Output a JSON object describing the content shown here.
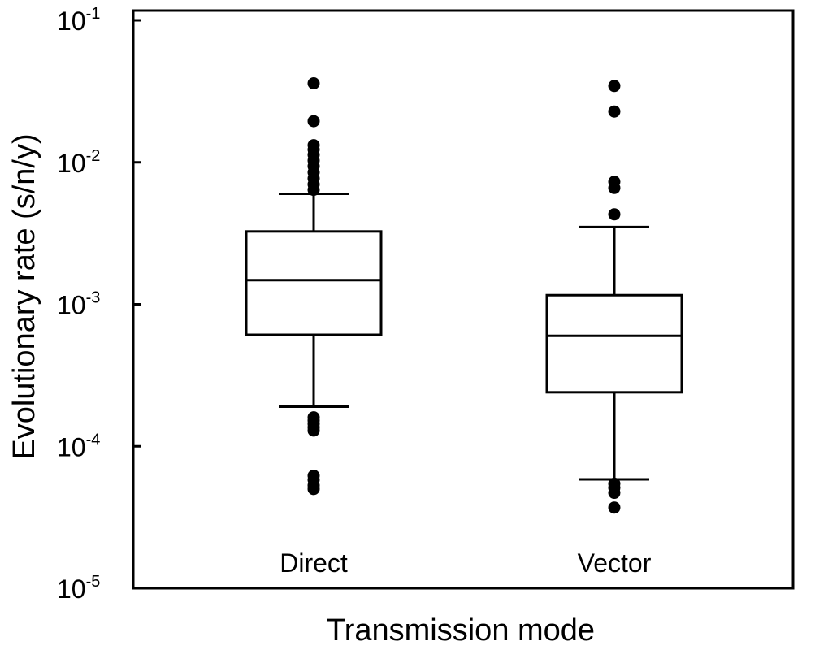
{
  "chart_data": {
    "type": "box",
    "xlabel": "Transmission mode",
    "ylabel": "Evolutionary rate (s/n/y)",
    "yscale": "log",
    "ylim": [
      1e-05,
      0.1
    ],
    "yticks": [
      {
        "value": 0.1,
        "base": "10",
        "exp": "-1"
      },
      {
        "value": 0.01,
        "base": "10",
        "exp": "-2"
      },
      {
        "value": 0.001,
        "base": "10",
        "exp": "-3"
      },
      {
        "value": 0.0001,
        "base": "10",
        "exp": "-4"
      },
      {
        "value": 1e-05,
        "base": "10",
        "exp": "-5"
      }
    ],
    "grid": false,
    "legend": "none",
    "categories": [
      "Direct",
      "Vector"
    ],
    "boxes": [
      {
        "category": "Direct",
        "whisker_low": 0.00019,
        "q1": 0.00061,
        "median": 0.00148,
        "q3": 0.00326,
        "whisker_high": 0.006,
        "outliers": [
          0.036,
          0.0195,
          0.0132,
          0.0123,
          0.0113,
          0.0103,
          0.0094,
          0.0085,
          0.0077,
          0.007,
          0.0064,
          0.00016,
          0.000152,
          0.000144,
          0.000136,
          0.000129,
          6.2e-05,
          5.8e-05,
          5.3e-05,
          5e-05
        ]
      },
      {
        "category": "Vector",
        "whisker_low": 5.85e-05,
        "q1": 0.00024,
        "median": 0.0006,
        "q3": 0.00116,
        "whisker_high": 0.0035,
        "outliers": [
          0.0345,
          0.0228,
          0.0073,
          0.0066,
          0.0043,
          5.45e-05,
          5.1e-05,
          4.7e-05,
          3.7e-05
        ]
      }
    ]
  }
}
